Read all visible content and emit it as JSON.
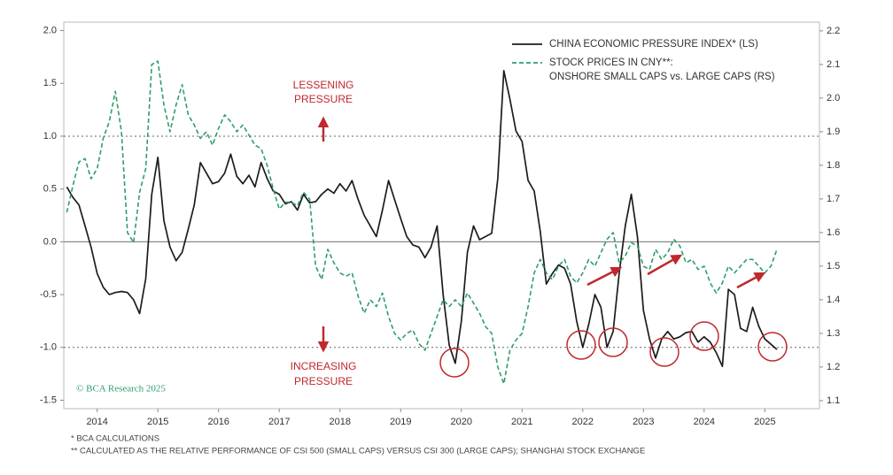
{
  "chart_data": {
    "type": "line",
    "legend": {
      "corner": "top-right"
    },
    "annotations": {
      "lessening": [
        "LESSENING",
        "PRESSURE"
      ],
      "increasing": [
        "INCREASING",
        "PRESSURE"
      ],
      "credit": "© BCA Research 2025"
    },
    "footnotes": [
      "* BCA CALCULATIONS",
      "** CALCULATED AS THE RELATIVE PERFORMANCE OF CSI 500 (SMALL CAPS) VERSUS CSI 300 (LARGE CAPS); SHANGHAI STOCK EXCHANGE"
    ],
    "xlim": [
      2013.95,
      2026.4
    ],
    "xticks": [
      {
        "value": 2014.5,
        "label": "2014"
      },
      {
        "value": 2015.5,
        "label": "2015"
      },
      {
        "value": 2016.5,
        "label": "2016"
      },
      {
        "value": 2017.5,
        "label": "2017"
      },
      {
        "value": 2018.5,
        "label": "2018"
      },
      {
        "value": 2019.5,
        "label": "2019"
      },
      {
        "value": 2020.5,
        "label": "2020"
      },
      {
        "value": 2021.5,
        "label": "2021"
      },
      {
        "value": 2022.5,
        "label": "2022"
      },
      {
        "value": 2023.5,
        "label": "2023"
      },
      {
        "value": 2024.5,
        "label": "2024"
      },
      {
        "value": 2025.5,
        "label": "2025"
      }
    ],
    "ylim": [
      -1.58,
      2.08
    ],
    "yticks": [
      {
        "value": 2,
        "label": "2.0"
      },
      1.5,
      {
        "value": 1,
        "label": "1.0"
      },
      0.5,
      {
        "value": 0,
        "label": "0.0"
      },
      -0.5,
      {
        "value": -1,
        "label": "-1.0"
      },
      -1.5
    ],
    "y2lim": [
      1.076,
      2.226
    ],
    "y2ticks": [
      2.2,
      2.1,
      {
        "value": 2,
        "label": "2.0"
      },
      1.9,
      1.8,
      1.7,
      1.6,
      1.5,
      1.4,
      1.3,
      1.2,
      1.1
    ],
    "reference_lines": [
      {
        "value": 1,
        "style": "dotted"
      },
      {
        "value": 0,
        "style": "solid"
      },
      {
        "value": -1,
        "style": "dotted"
      }
    ],
    "x": [
      2014.0,
      2014.1,
      2014.2,
      2014.3,
      2014.4,
      2014.5,
      2014.6,
      2014.7,
      2014.8,
      2014.9,
      2015.0,
      2015.1,
      2015.2,
      2015.3,
      2015.4,
      2015.5,
      2015.6,
      2015.7,
      2015.8,
      2015.9,
      2016.0,
      2016.1,
      2016.2,
      2016.3,
      2016.4,
      2016.5,
      2016.6,
      2016.7,
      2016.8,
      2016.9,
      2017.0,
      2017.1,
      2017.2,
      2017.3,
      2017.4,
      2017.5,
      2017.6,
      2017.7,
      2017.8,
      2017.9,
      2018.0,
      2018.1,
      2018.2,
      2018.3,
      2018.4,
      2018.5,
      2018.6,
      2018.7,
      2018.8,
      2018.9,
      2019.0,
      2019.1,
      2019.2,
      2019.3,
      2019.4,
      2019.5,
      2019.6,
      2019.7,
      2019.8,
      2019.9,
      2020.0,
      2020.1,
      2020.2,
      2020.3,
      2020.4,
      2020.5,
      2020.6,
      2020.7,
      2020.8,
      2020.9,
      2021.0,
      2021.1,
      2021.2,
      2021.3,
      2021.4,
      2021.5,
      2021.6,
      2021.7,
      2021.8,
      2021.9,
      2022.0,
      2022.1,
      2022.2,
      2022.3,
      2022.4,
      2022.5,
      2022.6,
      2022.7,
      2022.8,
      2022.9,
      2023.0,
      2023.1,
      2023.2,
      2023.3,
      2023.4,
      2023.5,
      2023.6,
      2023.7,
      2023.8,
      2023.9,
      2024.0,
      2024.1,
      2024.2,
      2024.3,
      2024.4,
      2024.5,
      2024.6,
      2024.7,
      2024.8,
      2024.9,
      2025.0,
      2025.1,
      2025.2,
      2025.3,
      2025.4,
      2025.5,
      2025.6,
      2025.7
    ],
    "series": [
      {
        "name": [
          "CHINA ECONOMIC PRESSURE INDEX* (LS)"
        ],
        "color": "#1c1c1c",
        "dash": "solid",
        "axis": "y",
        "values": [
          0.52,
          0.42,
          0.35,
          0.15,
          -0.05,
          -0.3,
          -0.43,
          -0.5,
          -0.48,
          -0.47,
          -0.48,
          -0.55,
          -0.68,
          -0.35,
          0.45,
          0.8,
          0.2,
          -0.05,
          -0.18,
          -0.1,
          0.12,
          0.35,
          0.75,
          0.65,
          0.55,
          0.57,
          0.65,
          0.83,
          0.62,
          0.55,
          0.63,
          0.52,
          0.75,
          0.6,
          0.48,
          0.45,
          0.36,
          0.38,
          0.3,
          0.45,
          0.37,
          0.38,
          0.45,
          0.5,
          0.46,
          0.55,
          0.48,
          0.58,
          0.4,
          0.25,
          0.15,
          0.05,
          0.3,
          0.58,
          0.4,
          0.22,
          0.05,
          -0.03,
          -0.05,
          -0.15,
          -0.05,
          0.15,
          -0.5,
          -0.98,
          -1.15,
          -0.75,
          -0.1,
          0.15,
          0.02,
          0.05,
          0.08,
          0.6,
          1.62,
          1.35,
          1.05,
          0.95,
          0.58,
          0.48,
          0.1,
          -0.4,
          -0.3,
          -0.22,
          -0.25,
          -0.4,
          -0.75,
          -1.0,
          -0.78,
          -0.5,
          -0.62,
          -1.0,
          -0.85,
          -0.3,
          0.15,
          0.45,
          0.05,
          -0.65,
          -0.92,
          -1.1,
          -0.92,
          -0.85,
          -0.92,
          -0.9,
          -0.86,
          -0.85,
          -0.95,
          -0.9,
          -0.95,
          -1.05,
          -1.18,
          -0.45,
          -0.5,
          -0.82,
          -0.85,
          -0.62,
          -0.8,
          -0.92,
          -0.97,
          -1.02
        ]
      },
      {
        "name": [
          "STOCK PRICES IN CNY**:",
          "ONSHORE SMALL CAPS vs. LARGE CAPS (RS)"
        ],
        "color": "#2f9e6b",
        "dash": "dashed",
        "axis": "y2",
        "values": [
          1.66,
          1.74,
          1.81,
          1.82,
          1.76,
          1.79,
          1.88,
          1.93,
          2.02,
          1.9,
          1.6,
          1.57,
          1.72,
          1.79,
          2.1,
          2.11,
          1.98,
          1.9,
          1.98,
          2.04,
          1.95,
          1.92,
          1.88,
          1.9,
          1.86,
          1.91,
          1.95,
          1.93,
          1.9,
          1.92,
          1.89,
          1.86,
          1.85,
          1.8,
          1.73,
          1.67,
          1.69,
          1.69,
          1.68,
          1.72,
          1.7,
          1.5,
          1.46,
          1.55,
          1.51,
          1.48,
          1.47,
          1.48,
          1.41,
          1.36,
          1.4,
          1.38,
          1.42,
          1.35,
          1.3,
          1.28,
          1.3,
          1.31,
          1.27,
          1.25,
          1.3,
          1.35,
          1.4,
          1.38,
          1.4,
          1.38,
          1.42,
          1.39,
          1.36,
          1.32,
          1.3,
          1.2,
          1.15,
          1.25,
          1.28,
          1.3,
          1.38,
          1.48,
          1.52,
          1.48,
          1.46,
          1.5,
          1.52,
          1.47,
          1.45,
          1.48,
          1.52,
          1.5,
          1.54,
          1.58,
          1.6,
          1.51,
          1.53,
          1.57,
          1.56,
          1.5,
          1.49,
          1.55,
          1.52,
          1.54,
          1.58,
          1.56,
          1.51,
          1.52,
          1.49,
          1.5,
          1.45,
          1.42,
          1.45,
          1.5,
          1.48,
          1.5,
          1.52,
          1.52,
          1.5,
          1.48,
          1.5,
          1.55
        ]
      }
    ]
  }
}
